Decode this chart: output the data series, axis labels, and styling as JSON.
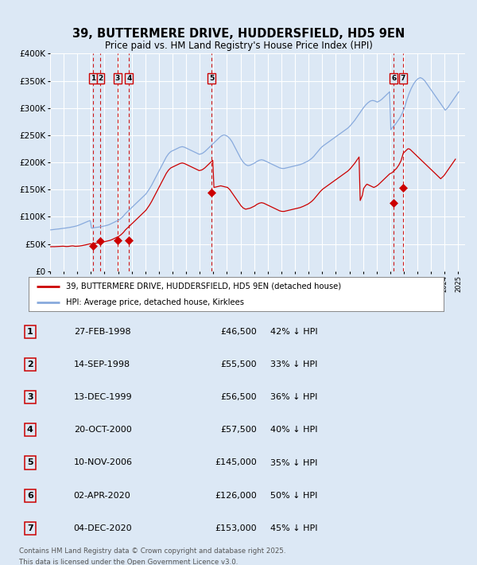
{
  "title": "39, BUTTERMERE DRIVE, HUDDERSFIELD, HD5 9EN",
  "subtitle": "Price paid vs. HM Land Registry's House Price Index (HPI)",
  "legend_line1": "39, BUTTERMERE DRIVE, HUDDERSFIELD, HD5 9EN (detached house)",
  "legend_line2": "HPI: Average price, detached house, Kirklees",
  "footer1": "Contains HM Land Registry data © Crown copyright and database right 2025.",
  "footer2": "This data is licensed under the Open Government Licence v3.0.",
  "ylim": [
    0,
    400000
  ],
  "yticks": [
    0,
    50000,
    100000,
    150000,
    200000,
    250000,
    300000,
    350000,
    400000
  ],
  "ytick_labels": [
    "£0",
    "£50K",
    "£100K",
    "£150K",
    "£200K",
    "£250K",
    "£300K",
    "£350K",
    "£400K"
  ],
  "bg_color": "#dce8f5",
  "plot_bg_color": "#dce8f5",
  "grid_color": "#ffffff",
  "sale_color": "#cc0000",
  "hpi_color": "#88aadd",
  "vline_color": "#cc0000",
  "sales": [
    {
      "num": 1,
      "date": "27-FEB-1998",
      "year": 1998.15,
      "price": 46500,
      "price_label": "£46,500",
      "hpi_label": "42% ↓ HPI"
    },
    {
      "num": 2,
      "date": "14-SEP-1998",
      "year": 1998.71,
      "price": 55500,
      "price_label": "£55,500",
      "hpi_label": "33% ↓ HPI"
    },
    {
      "num": 3,
      "date": "13-DEC-1999",
      "year": 1999.95,
      "price": 56500,
      "price_label": "£56,500",
      "hpi_label": "36% ↓ HPI"
    },
    {
      "num": 4,
      "date": "20-OCT-2000",
      "year": 2000.8,
      "price": 57500,
      "price_label": "£57,500",
      "hpi_label": "40% ↓ HPI"
    },
    {
      "num": 5,
      "date": "10-NOV-2006",
      "year": 2006.86,
      "price": 145000,
      "price_label": "£145,000",
      "hpi_label": "35% ↓ HPI"
    },
    {
      "num": 6,
      "date": "02-APR-2020",
      "year": 2020.25,
      "price": 126000,
      "price_label": "£126,000",
      "hpi_label": "50% ↓ HPI"
    },
    {
      "num": 7,
      "date": "04-DEC-2020",
      "year": 2020.92,
      "price": 153000,
      "price_label": "£153,000",
      "hpi_label": "45% ↓ HPI"
    }
  ],
  "hpi_monthly": {
    "start_year": 1995,
    "start_month": 1,
    "values": [
      76000,
      76200,
      76500,
      76800,
      77000,
      77200,
      77500,
      77700,
      78000,
      78200,
      78500,
      78800,
      79000,
      79300,
      79600,
      79900,
      80200,
      80600,
      81000,
      81400,
      81800,
      82300,
      82800,
      83300,
      84000,
      84800,
      85600,
      86500,
      87400,
      88300,
      89200,
      90100,
      91000,
      91800,
      92500,
      93000,
      79000,
      79500,
      80000,
      80200,
      80500,
      80800,
      81000,
      81300,
      81600,
      82000,
      82500,
      83000,
      83500,
      84000,
      84500,
      85200,
      86000,
      87000,
      88000,
      89000,
      90000,
      91000,
      92000,
      93000,
      94000,
      95500,
      97000,
      99000,
      101000,
      103500,
      106000,
      108000,
      110000,
      112000,
      114000,
      116000,
      118000,
      120000,
      122000,
      124000,
      126000,
      128000,
      130000,
      132000,
      134000,
      136000,
      138000,
      140000,
      142000,
      145000,
      148000,
      151000,
      154500,
      158000,
      162000,
      166000,
      170000,
      174000,
      178000,
      182000,
      186000,
      190000,
      194000,
      198000,
      202000,
      206000,
      210000,
      213000,
      216000,
      218000,
      220000,
      221000,
      222000,
      223000,
      224000,
      225000,
      226000,
      227000,
      228000,
      228500,
      229000,
      228500,
      228000,
      227000,
      226000,
      225000,
      224000,
      223000,
      222000,
      221000,
      220000,
      219000,
      218000,
      217000,
      216000,
      215000,
      215500,
      216000,
      217000,
      218500,
      220000,
      222000,
      224000,
      226000,
      228000,
      230000,
      232000,
      234000,
      236000,
      238000,
      240000,
      242000,
      244000,
      246000,
      248000,
      249000,
      250000,
      250500,
      250000,
      249000,
      248000,
      246000,
      244000,
      241000,
      238000,
      234000,
      230000,
      226000,
      222000,
      218000,
      214000,
      210000,
      206000,
      203000,
      200000,
      198000,
      196000,
      195000,
      194000,
      194500,
      195000,
      196000,
      197000,
      198000,
      199000,
      200500,
      202000,
      203000,
      204000,
      204500,
      205000,
      204500,
      204000,
      203000,
      202000,
      201000,
      200000,
      199000,
      198000,
      197000,
      196000,
      195000,
      194000,
      193000,
      192000,
      191000,
      190000,
      189500,
      189000,
      189000,
      189000,
      189500,
      190000,
      190500,
      191000,
      191500,
      192000,
      192500,
      193000,
      193500,
      194000,
      194500,
      195000,
      195500,
      196000,
      196800,
      197500,
      198500,
      199500,
      200500,
      201500,
      202500,
      204000,
      205500,
      207000,
      209000,
      211000,
      213500,
      216000,
      218500,
      221000,
      223500,
      226000,
      228000,
      230000,
      231500,
      233000,
      234500,
      236000,
      237500,
      239000,
      240500,
      242000,
      243500,
      245000,
      246500,
      248000,
      249500,
      251000,
      252500,
      254000,
      255500,
      257000,
      258500,
      260000,
      261500,
      263000,
      265000,
      267000,
      269500,
      272000,
      274500,
      277000,
      280000,
      283000,
      286000,
      289000,
      292000,
      295000,
      298000,
      301000,
      303500,
      306000,
      308000,
      310000,
      311500,
      313000,
      313500,
      314000,
      313500,
      313000,
      312000,
      311000,
      312000,
      313000,
      314500,
      316000,
      318000,
      320000,
      322000,
      324000,
      326000,
      328000,
      330000,
      260000,
      263000,
      266000,
      268000,
      270000,
      273000,
      276000,
      279000,
      282000,
      286000,
      290000,
      295000,
      300000,
      307000,
      314000,
      320000,
      326000,
      331000,
      336000,
      340000,
      344000,
      347000,
      350000,
      352000,
      354000,
      355000,
      356000,
      355000,
      354000,
      352000,
      350000,
      347000,
      344000,
      341000,
      338000,
      335000,
      332000,
      329000,
      326000,
      323000,
      320000,
      317000,
      314000,
      311000,
      308000,
      305000,
      302000,
      299000,
      296000,
      298000,
      300000,
      303000,
      306000,
      309000,
      312000,
      315000,
      318000,
      321000,
      324000,
      327000,
      330000
    ]
  },
  "price_hpi_monthly": {
    "start_year": 1995,
    "start_month": 1,
    "values": [
      45000,
      45100,
      45200,
      45100,
      45200,
      45300,
      45400,
      45500,
      45600,
      45700,
      45800,
      46000,
      45800,
      45600,
      45400,
      45500,
      45700,
      46000,
      46300,
      46600,
      46500,
      46000,
      45800,
      45900,
      46000,
      46200,
      46500,
      46800,
      47200,
      47600,
      48000,
      48500,
      49000,
      49500,
      50000,
      50500,
      50000,
      50500,
      51000,
      51200,
      51500,
      51800,
      52000,
      52300,
      52600,
      53000,
      53500,
      54000,
      54500,
      55000,
      55500,
      56000,
      56500,
      57200,
      58000,
      59000,
      60000,
      61000,
      62000,
      63000,
      64000,
      65500,
      67000,
      69000,
      71000,
      73500,
      76000,
      78000,
      80000,
      82000,
      84000,
      86000,
      88000,
      90000,
      92000,
      94000,
      96000,
      98000,
      100000,
      102000,
      104000,
      106000,
      108000,
      110000,
      112000,
      115000,
      118000,
      121000,
      124500,
      128000,
      132000,
      136000,
      140000,
      144000,
      148000,
      152000,
      156000,
      160000,
      164000,
      168000,
      172000,
      176000,
      180000,
      183000,
      186000,
      188000,
      190000,
      191000,
      192000,
      193000,
      194000,
      195000,
      196000,
      197000,
      198000,
      198500,
      199000,
      198500,
      198000,
      197000,
      196000,
      195000,
      194000,
      193000,
      192000,
      191000,
      190000,
      189000,
      188000,
      187000,
      186000,
      185000,
      185500,
      186000,
      187000,
      188500,
      190000,
      192000,
      194000,
      196000,
      198000,
      200000,
      202000,
      204000,
      154000,
      154500,
      155000,
      155500,
      156000,
      156500,
      157000,
      156500,
      156000,
      155500,
      155000,
      154500,
      154000,
      152000,
      150000,
      147000,
      144000,
      141000,
      138000,
      135000,
      132000,
      129000,
      126000,
      123000,
      120000,
      118000,
      116000,
      115000,
      114000,
      114500,
      115000,
      115500,
      116000,
      117000,
      118000,
      119000,
      120000,
      121500,
      123000,
      124000,
      125000,
      125500,
      126000,
      125500,
      125000,
      124000,
      123000,
      122000,
      121000,
      120000,
      119000,
      118000,
      117000,
      116000,
      115000,
      114000,
      113000,
      112000,
      111000,
      110500,
      110000,
      110000,
      110000,
      110500,
      111000,
      111500,
      112000,
      112500,
      113000,
      113500,
      114000,
      114500,
      115000,
      115500,
      116000,
      116500,
      117000,
      117800,
      118500,
      119500,
      120500,
      121500,
      122500,
      123500,
      125000,
      126500,
      128000,
      130000,
      132000,
      134500,
      137000,
      139500,
      142000,
      144500,
      147000,
      149000,
      151000,
      152500,
      154000,
      155500,
      157000,
      158500,
      160000,
      161500,
      163000,
      164500,
      166000,
      167500,
      169000,
      170500,
      172000,
      173500,
      175000,
      176500,
      178000,
      179500,
      181000,
      182500,
      184000,
      186000,
      188000,
      190500,
      193000,
      195500,
      198000,
      201000,
      204000,
      207000,
      210000,
      130000,
      135000,
      140000,
      152000,
      155000,
      158000,
      160000,
      159000,
      158000,
      157000,
      156000,
      155000,
      154000,
      155000,
      156000,
      157500,
      159000,
      161000,
      163000,
      165000,
      167000,
      169000,
      171000,
      173000,
      175000,
      177000,
      179000,
      180000,
      181000,
      183000,
      185000,
      187000,
      189000,
      192000,
      195000,
      199000,
      203000,
      210000,
      217000,
      219000,
      221000,
      223000,
      225000,
      225000,
      224000,
      222000,
      220000,
      218000,
      216000,
      214000,
      212000,
      210000,
      208000,
      206000,
      204000,
      202000,
      200000,
      198000,
      196000,
      194000,
      192000,
      190000,
      188000,
      186000,
      184000,
      182000,
      180000,
      178000,
      176000,
      174000,
      172000,
      170000,
      172000,
      174000,
      176000,
      179000,
      182000,
      185000,
      188000,
      191000,
      194000,
      197000,
      200000,
      203000,
      206000
    ]
  }
}
